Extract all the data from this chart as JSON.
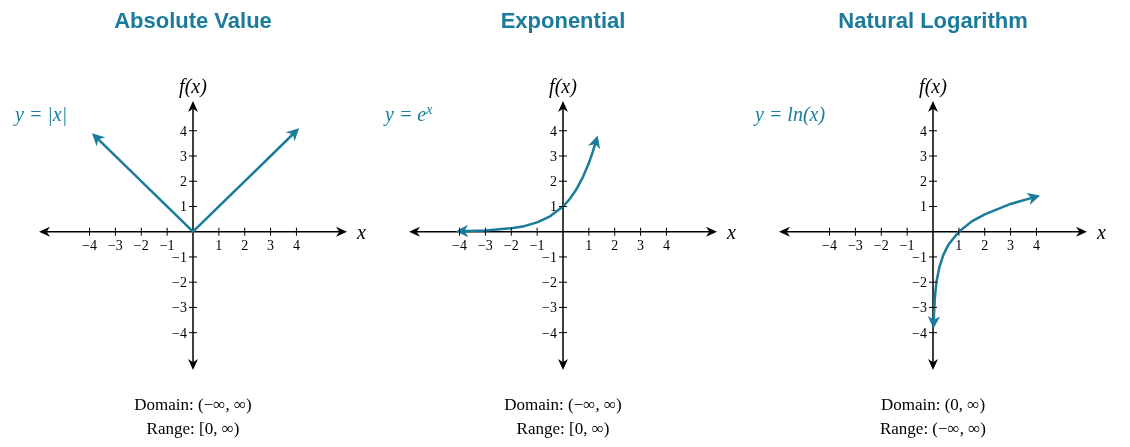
{
  "chart_data": [
    {
      "type": "line",
      "title": "Absolute Value",
      "xlabel": "x",
      "ylabel": "f(x)",
      "x": [
        -3.8,
        0,
        4
      ],
      "series": [
        {
          "name": "y = |x|",
          "color": "#1b7b9b",
          "values": [
            3.8,
            0,
            4
          ]
        }
      ],
      "xlim": [
        -5.8,
        5.8
      ],
      "ylim": [
        -5.4,
        5.1
      ],
      "xticks": [
        {
          "value": -4,
          "label": "−4"
        },
        {
          "value": -3,
          "label": "−3"
        },
        {
          "value": -2,
          "label": "−2"
        },
        {
          "value": -1,
          "label": "−1"
        },
        1,
        2,
        3,
        4
      ],
      "yticks": [
        {
          "value": -4,
          "label": "−4"
        },
        {
          "value": -3,
          "label": "−3"
        },
        {
          "value": -2,
          "label": "−2"
        },
        {
          "value": -1,
          "label": "−1"
        },
        1,
        2,
        3,
        4
      ],
      "annotations": [
        "Domain: (−∞, ∞)",
        "Range: [0, ∞)"
      ]
    },
    {
      "type": "line",
      "title": "Exponential",
      "xlabel": "x",
      "ylabel": "f(x)",
      "x": [
        -4,
        -3,
        -2,
        -1.5,
        -1,
        -0.5,
        0,
        0.25,
        0.5,
        0.75,
        1,
        1.15,
        1.3
      ],
      "series": [
        {
          "name": "y = e$^{x}$",
          "color": "#1b7b9b",
          "values": [
            0.02,
            0.05,
            0.14,
            0.22,
            0.37,
            0.61,
            1,
            1.28,
            1.65,
            2.12,
            2.72,
            3.16,
            3.67
          ]
        }
      ],
      "xlim": [
        -5.8,
        5.8
      ],
      "ylim": [
        -5.4,
        5.1
      ],
      "xticks": [
        {
          "value": -4,
          "label": "−4"
        },
        {
          "value": -3,
          "label": "−3"
        },
        {
          "value": -2,
          "label": "−2"
        },
        {
          "value": -1,
          "label": "−1"
        },
        1,
        2,
        3,
        4
      ],
      "yticks": [
        {
          "value": -4,
          "label": "−4"
        },
        {
          "value": -3,
          "label": "−3"
        },
        {
          "value": -2,
          "label": "−2"
        },
        {
          "value": -1,
          "label": "−1"
        },
        1,
        2,
        3,
        4
      ],
      "annotations": [
        "Domain: (−∞, ∞)",
        "Range: [0, ∞)"
      ]
    },
    {
      "type": "line",
      "title": "Natural Logarithm",
      "xlabel": "x",
      "ylabel": "f(x)",
      "x": [
        0.025,
        0.04,
        0.07,
        0.1,
        0.15,
        0.25,
        0.4,
        0.6,
        1,
        1.5,
        2,
        3,
        4
      ],
      "series": [
        {
          "name": "y = ln(x)",
          "color": "#1b7b9b",
          "values": [
            -3.69,
            -3.22,
            -2.66,
            -2.3,
            -1.9,
            -1.39,
            -0.92,
            -0.51,
            0,
            0.41,
            0.69,
            1.1,
            1.39
          ]
        }
      ],
      "xlim": [
        -5.8,
        5.8
      ],
      "ylim": [
        -5.4,
        5.1
      ],
      "xticks": [
        {
          "value": -4,
          "label": "−4"
        },
        {
          "value": -3,
          "label": "−3"
        },
        {
          "value": -2,
          "label": "−2"
        },
        {
          "value": -1,
          "label": "−1"
        },
        1,
        2,
        3,
        4
      ],
      "yticks": [
        {
          "value": -4,
          "label": "−4"
        },
        {
          "value": -3,
          "label": "−3"
        },
        {
          "value": -2,
          "label": "−2"
        },
        {
          "value": -1,
          "label": "−1"
        },
        1,
        2,
        3,
        4
      ],
      "annotations": [
        "Domain: (0, ∞)",
        "Range: (−∞, ∞)"
      ]
    }
  ]
}
